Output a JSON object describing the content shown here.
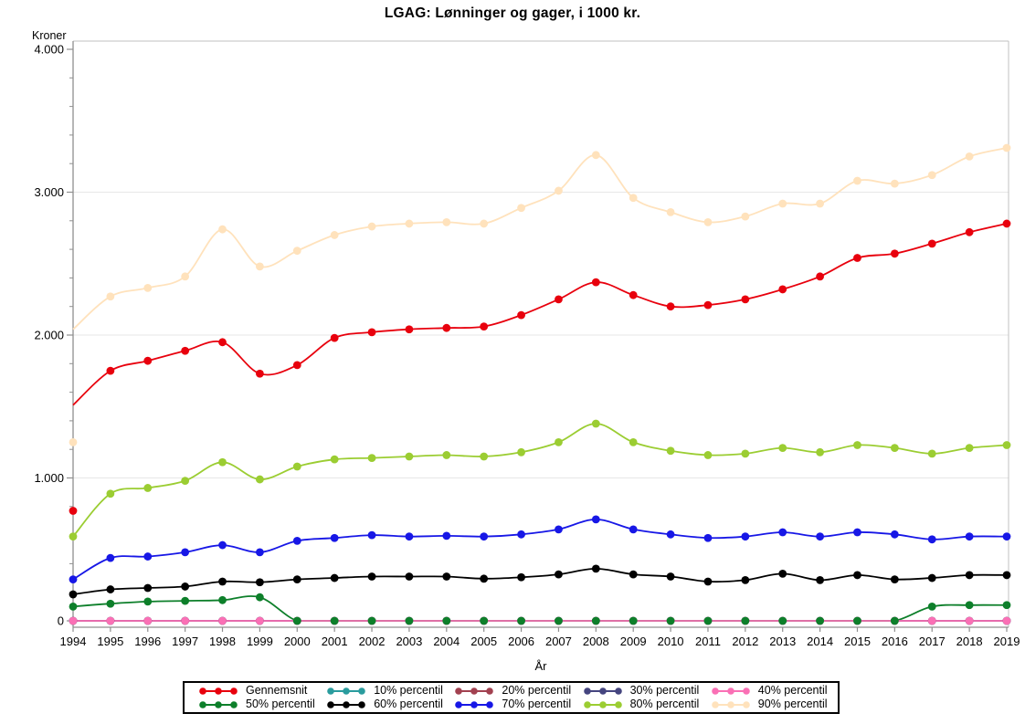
{
  "title": "LGAG: Lønninger og gager, i 1000 kr.",
  "y_axis": {
    "label": "Kroner",
    "ticks": [
      {
        "value": 0,
        "label": "0"
      },
      {
        "value": 1000,
        "label": "1.000"
      },
      {
        "value": 2000,
        "label": "2.000"
      },
      {
        "value": 3000,
        "label": "3.000"
      },
      {
        "value": 4000,
        "label": "4.000"
      }
    ],
    "minor_step": 200,
    "max": 4000
  },
  "x_axis": {
    "label": "År",
    "years": [
      1994,
      1995,
      1996,
      1997,
      1998,
      1999,
      2000,
      2001,
      2002,
      2003,
      2004,
      2005,
      2006,
      2007,
      2008,
      2009,
      2010,
      2011,
      2012,
      2013,
      2014,
      2015,
      2016,
      2017,
      2018,
      2019
    ]
  },
  "colors": {
    "grid": "#e7e7e7",
    "axis": "#8f8f8f",
    "frame": "#c2c2c2",
    "legend_border": "#000000"
  },
  "chart_data": {
    "type": "line",
    "x": [
      1994,
      1995,
      1996,
      1997,
      1998,
      1999,
      2000,
      2001,
      2002,
      2003,
      2004,
      2005,
      2006,
      2007,
      2008,
      2009,
      2010,
      2011,
      2012,
      2013,
      2014,
      2015,
      2016,
      2017,
      2018,
      2019
    ],
    "ylim": [
      0,
      4000
    ],
    "grid": "horizontal at 1000/2000/3000",
    "legend_position": "bottom",
    "series": [
      {
        "name": "Gennemsnit",
        "color": "#e8000d",
        "line_start_value": 1510,
        "values": [
          770,
          1750,
          1820,
          1890,
          1950,
          1730,
          1790,
          1980,
          2020,
          2040,
          2050,
          2060,
          2140,
          2250,
          2370,
          2280,
          2200,
          2210,
          2250,
          2320,
          2410,
          2540,
          2570,
          2640,
          2720,
          2780
        ]
      },
      {
        "name": "10% percentil",
        "color": "#2a9c9e",
        "values": [
          0,
          0,
          0,
          0,
          0,
          0,
          0,
          0,
          0,
          0,
          0,
          0,
          0,
          0,
          0,
          0,
          0,
          0,
          0,
          0,
          0,
          0,
          0,
          0,
          0,
          0
        ]
      },
      {
        "name": "20% percentil",
        "color": "#a24150",
        "values": [
          0,
          0,
          0,
          0,
          0,
          0,
          0,
          0,
          0,
          0,
          0,
          0,
          0,
          0,
          0,
          0,
          0,
          0,
          0,
          0,
          0,
          0,
          0,
          0,
          0,
          0
        ]
      },
      {
        "name": "30% percentil",
        "color": "#45457f",
        "values": [
          0,
          0,
          0,
          0,
          0,
          0,
          0,
          0,
          0,
          0,
          0,
          0,
          0,
          0,
          0,
          0,
          0,
          0,
          0,
          0,
          0,
          0,
          0,
          0,
          0,
          0
        ]
      },
      {
        "name": "40% percentil",
        "color": "#fa70b5",
        "values": [
          0,
          0,
          0,
          0,
          0,
          0,
          0,
          0,
          0,
          0,
          0,
          0,
          0,
          0,
          0,
          0,
          0,
          0,
          0,
          0,
          0,
          0,
          0,
          0,
          0,
          0
        ]
      },
      {
        "name": "50% percentil",
        "color": "#0d7f2a",
        "values": [
          100,
          120,
          135,
          140,
          145,
          165,
          0,
          0,
          0,
          0,
          0,
          0,
          0,
          0,
          0,
          0,
          0,
          0,
          0,
          0,
          0,
          0,
          0,
          100,
          110,
          110
        ]
      },
      {
        "name": "60% percentil",
        "color": "#000000",
        "values": [
          185,
          220,
          230,
          240,
          275,
          270,
          290,
          300,
          310,
          310,
          310,
          295,
          305,
          325,
          365,
          325,
          310,
          275,
          285,
          330,
          285,
          320,
          290,
          300,
          320,
          320
        ]
      },
      {
        "name": "70% percentil",
        "color": "#1717e6",
        "values": [
          290,
          440,
          450,
          480,
          530,
          480,
          560,
          580,
          600,
          590,
          595,
          590,
          605,
          640,
          710,
          640,
          605,
          580,
          590,
          620,
          590,
          620,
          605,
          570,
          590,
          590
        ]
      },
      {
        "name": "80% percentil",
        "color": "#9bcd32",
        "values": [
          590,
          890,
          930,
          980,
          1110,
          990,
          1080,
          1130,
          1140,
          1150,
          1160,
          1150,
          1180,
          1250,
          1380,
          1250,
          1190,
          1160,
          1170,
          1210,
          1180,
          1230,
          1210,
          1170,
          1210,
          1230
        ]
      },
      {
        "name": "90% percentil",
        "color": "#ffe2bc",
        "line_start_value": 2040,
        "values": [
          1250,
          2270,
          2330,
          2410,
          2740,
          2480,
          2590,
          2700,
          2760,
          2780,
          2790,
          2780,
          2890,
          3010,
          3260,
          2960,
          2860,
          2790,
          2830,
          2920,
          2920,
          3080,
          3060,
          3120,
          3250,
          3310
        ]
      }
    ],
    "line_order": [
      1,
      2,
      3,
      5,
      4,
      6,
      7,
      8,
      9,
      0
    ],
    "marker_order": [
      1,
      2,
      3,
      4,
      5,
      6,
      7,
      8,
      9,
      0
    ],
    "legend_rows": [
      [
        0,
        1,
        2,
        3,
        4
      ],
      [
        5,
        6,
        7,
        8,
        9
      ]
    ]
  }
}
